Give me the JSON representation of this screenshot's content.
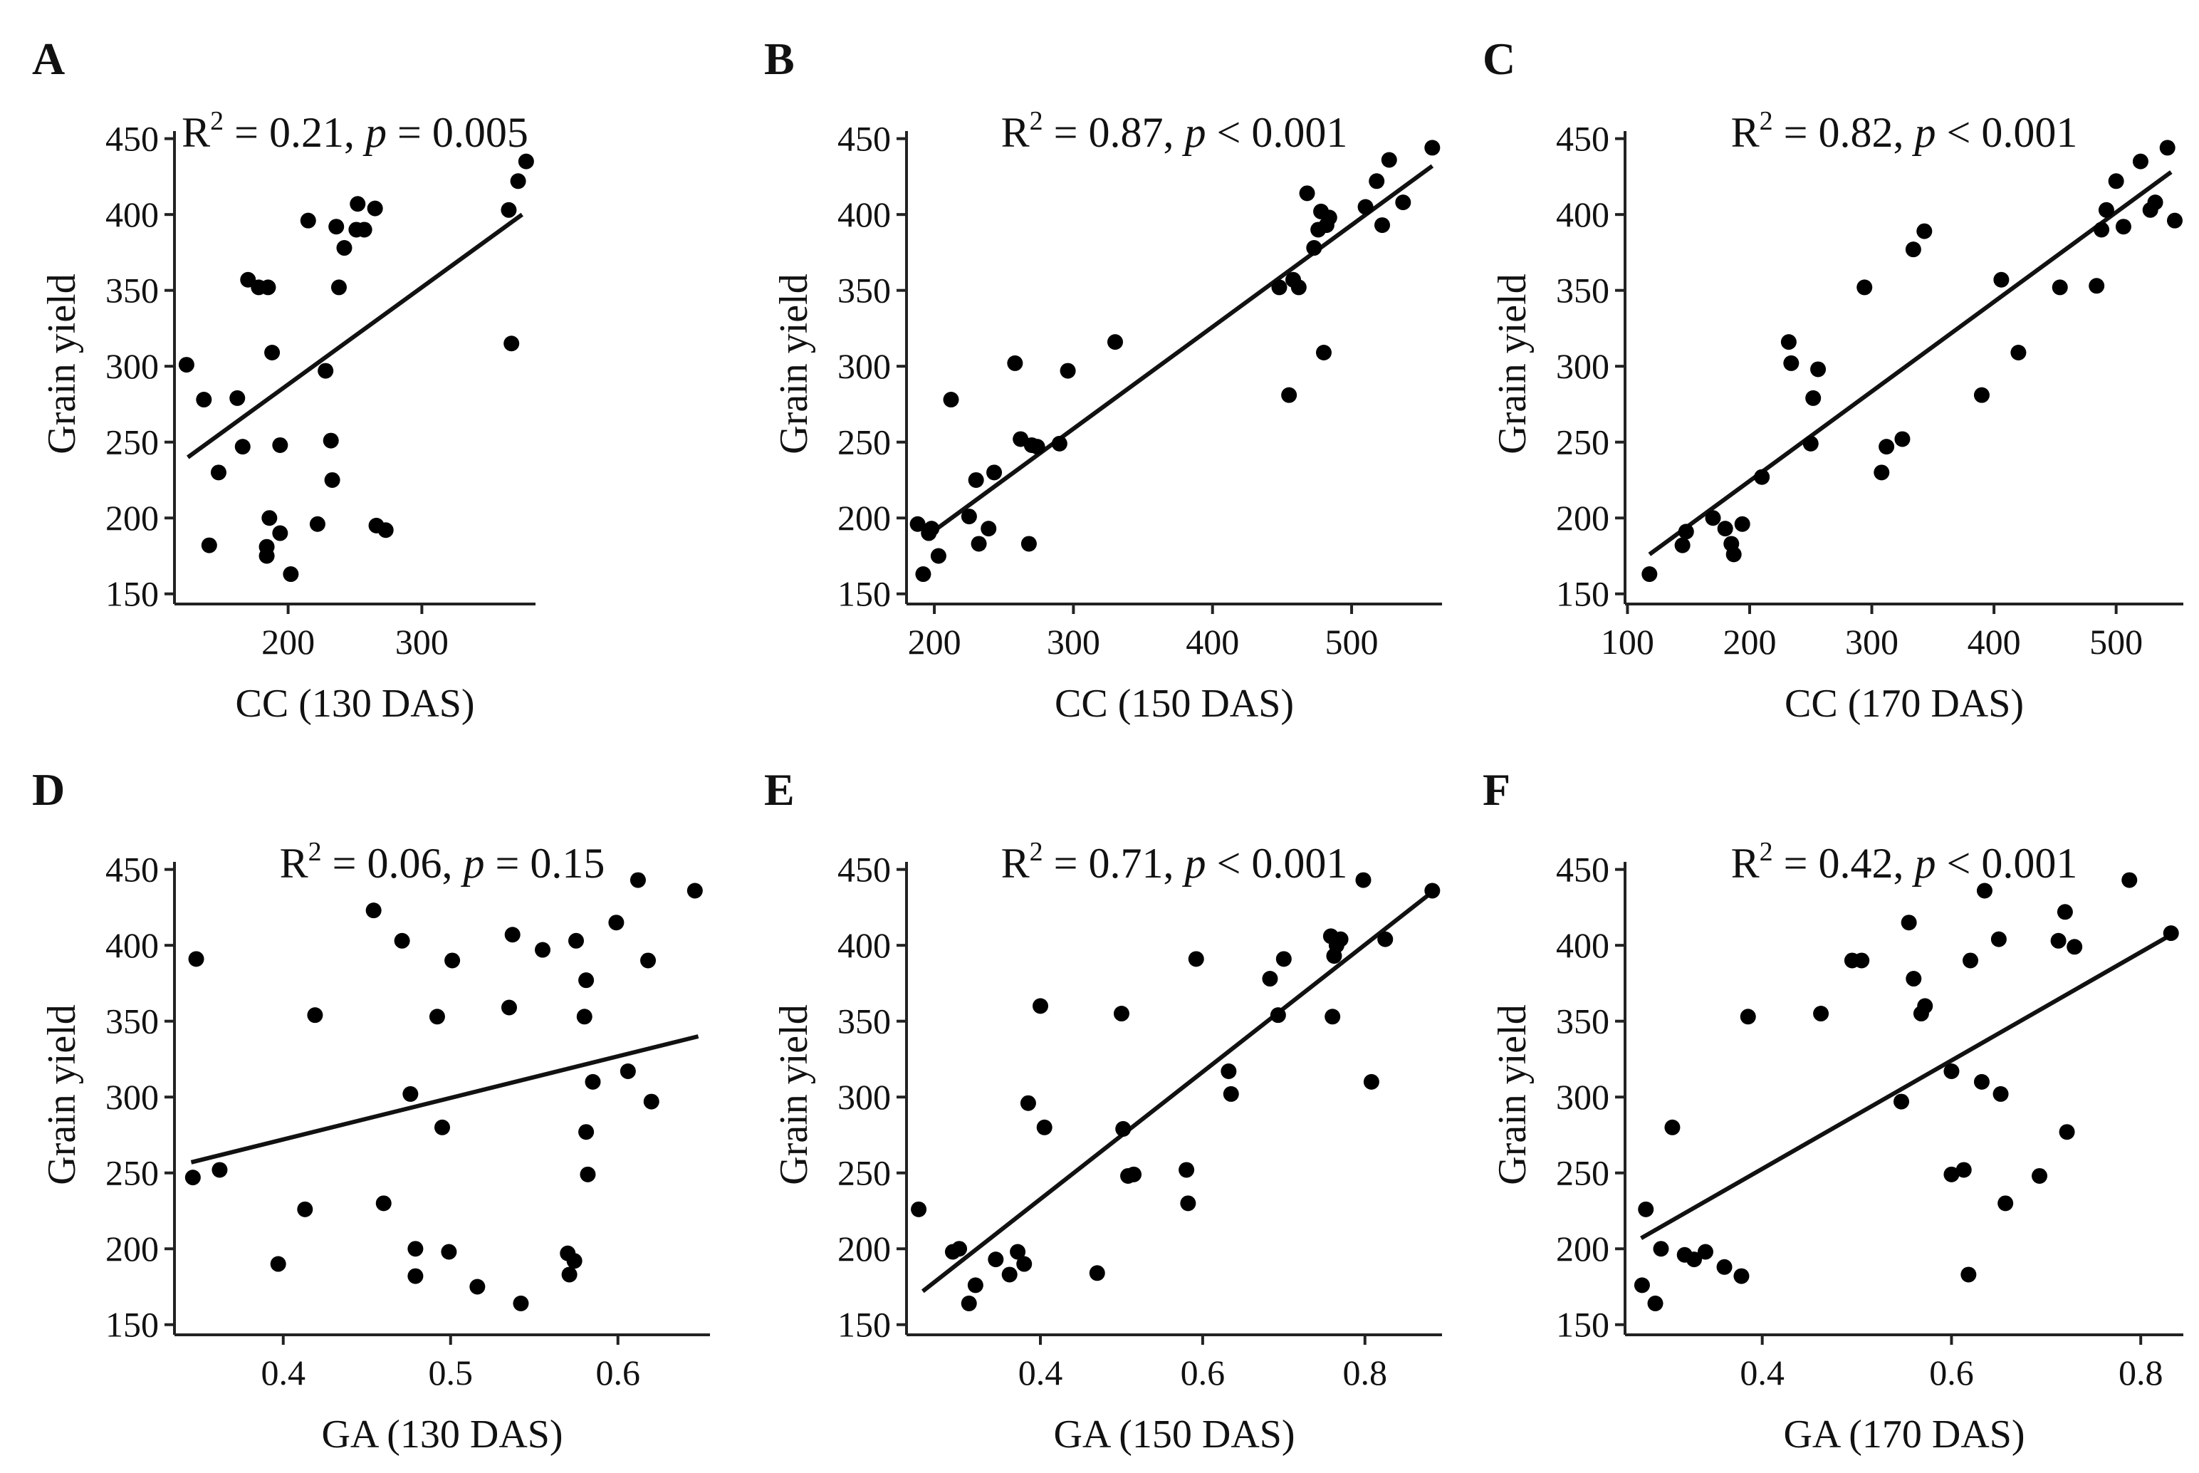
{
  "colors": {
    "points": "#000000",
    "line": "#111111",
    "axis": "#222222"
  },
  "chart_data": [
    {
      "panel": "A",
      "type": "scatter",
      "stat": {
        "r2_label": "R",
        "r2_value": "= 0.21, ",
        "p_label": "p",
        "p_value": " = 0.005"
      },
      "xlabel": "CC (130 DAS)",
      "ylabel": "Grain yield",
      "xlim": [
        115,
        385
      ],
      "ylim": [
        148,
        455
      ],
      "xticks": [
        200,
        300
      ],
      "yticks": [
        150,
        200,
        250,
        300,
        350,
        400,
        450
      ],
      "fit": {
        "x": [
          125,
          375
        ],
        "y": [
          240,
          400
        ]
      },
      "points": [
        [
          124,
          301
        ],
        [
          137,
          278
        ],
        [
          141,
          182
        ],
        [
          148,
          230
        ],
        [
          162,
          279
        ],
        [
          166,
          247
        ],
        [
          170,
          357
        ],
        [
          178,
          352
        ],
        [
          184,
          175
        ],
        [
          184,
          181
        ],
        [
          185,
          352
        ],
        [
          186,
          200
        ],
        [
          188,
          309
        ],
        [
          194,
          248
        ],
        [
          194,
          190
        ],
        [
          202,
          163
        ],
        [
          215,
          396
        ],
        [
          222,
          196
        ],
        [
          228,
          297
        ],
        [
          232,
          251
        ],
        [
          233,
          225
        ],
        [
          236,
          392
        ],
        [
          238,
          352
        ],
        [
          242,
          378
        ],
        [
          251,
          390
        ],
        [
          252,
          407
        ],
        [
          257,
          390
        ],
        [
          265,
          404
        ],
        [
          266,
          195
        ],
        [
          273,
          192
        ],
        [
          365,
          403
        ],
        [
          367,
          315
        ],
        [
          372,
          422
        ],
        [
          378,
          435
        ]
      ]
    },
    {
      "panel": "B",
      "type": "scatter",
      "stat": {
        "r2_label": "R",
        "r2_value": "= 0.87, ",
        "p_label": "p",
        "p_value": " < 0.001"
      },
      "xlabel": "CC (150 DAS)",
      "ylabel": "Grain yield",
      "xlim": [
        180,
        565
      ],
      "ylim": [
        148,
        455
      ],
      "xticks": [
        200,
        300,
        400,
        500
      ],
      "yticks": [
        150,
        200,
        250,
        300,
        350,
        400,
        450
      ],
      "fit": {
        "x": [
          193,
          558
        ],
        "y": [
          187,
          432
        ]
      },
      "points": [
        [
          188,
          196
        ],
        [
          192,
          163
        ],
        [
          196,
          190
        ],
        [
          198,
          193
        ],
        [
          203,
          175
        ],
        [
          212,
          278
        ],
        [
          225,
          201
        ],
        [
          230,
          225
        ],
        [
          232,
          183
        ],
        [
          239,
          193
        ],
        [
          243,
          230
        ],
        [
          258,
          302
        ],
        [
          262,
          252
        ],
        [
          268,
          183
        ],
        [
          270,
          248
        ],
        [
          274,
          247
        ],
        [
          290,
          249
        ],
        [
          296,
          297
        ],
        [
          330,
          316
        ],
        [
          448,
          352
        ],
        [
          455,
          281
        ],
        [
          458,
          357
        ],
        [
          462,
          352
        ],
        [
          468,
          414
        ],
        [
          473,
          378
        ],
        [
          476,
          390
        ],
        [
          478,
          402
        ],
        [
          480,
          309
        ],
        [
          482,
          393
        ],
        [
          484,
          398
        ],
        [
          510,
          405
        ],
        [
          518,
          422
        ],
        [
          522,
          393
        ],
        [
          527,
          436
        ],
        [
          537,
          408
        ],
        [
          558,
          444
        ]
      ]
    },
    {
      "panel": "C",
      "type": "scatter",
      "stat": {
        "r2_label": "R",
        "r2_value": "= 0.82, ",
        "p_label": "p",
        "p_value": " < 0.001"
      },
      "xlabel": "CC (170 DAS)",
      "ylabel": "Grain yield",
      "xlim": [
        98,
        555
      ],
      "ylim": [
        148,
        455
      ],
      "xticks": [
        100,
        200,
        300,
        400,
        500
      ],
      "yticks": [
        150,
        200,
        250,
        300,
        350,
        400,
        450
      ],
      "fit": {
        "x": [
          118,
          545
        ],
        "y": [
          176,
          428
        ]
      },
      "points": [
        [
          118,
          163
        ],
        [
          145,
          182
        ],
        [
          148,
          191
        ],
        [
          170,
          200
        ],
        [
          180,
          193
        ],
        [
          185,
          183
        ],
        [
          187,
          176
        ],
        [
          194,
          196
        ],
        [
          210,
          227
        ],
        [
          232,
          316
        ],
        [
          234,
          302
        ],
        [
          250,
          249
        ],
        [
          252,
          279
        ],
        [
          256,
          298
        ],
        [
          294,
          352
        ],
        [
          308,
          230
        ],
        [
          312,
          247
        ],
        [
          325,
          252
        ],
        [
          334,
          377
        ],
        [
          343,
          389
        ],
        [
          390,
          281
        ],
        [
          406,
          357
        ],
        [
          420,
          309
        ],
        [
          454,
          352
        ],
        [
          484,
          353
        ],
        [
          488,
          390
        ],
        [
          492,
          403
        ],
        [
          500,
          422
        ],
        [
          506,
          392
        ],
        [
          520,
          435
        ],
        [
          528,
          403
        ],
        [
          532,
          408
        ],
        [
          542,
          444
        ],
        [
          548,
          396
        ]
      ]
    },
    {
      "panel": "D",
      "type": "scatter",
      "stat": {
        "r2_label": "R",
        "r2_value": "= 0.06, ",
        "p_label": "p",
        "p_value": " = 0.15"
      },
      "xlabel": "GA (130 DAS)",
      "ylabel": "Grain yield",
      "xlim": [
        0.335,
        0.655
      ],
      "ylim": [
        148,
        455
      ],
      "xticks": [
        0.4,
        0.5,
        0.6
      ],
      "yticks": [
        150,
        200,
        250,
        300,
        350,
        400,
        450
      ],
      "fit": {
        "x": [
          0.345,
          0.648
        ],
        "y": [
          257,
          340
        ]
      },
      "points": [
        [
          0.346,
          247
        ],
        [
          0.348,
          391
        ],
        [
          0.362,
          252
        ],
        [
          0.397,
          190
        ],
        [
          0.413,
          226
        ],
        [
          0.419,
          354
        ],
        [
          0.454,
          423
        ],
        [
          0.46,
          230
        ],
        [
          0.471,
          403
        ],
        [
          0.476,
          302
        ],
        [
          0.479,
          200
        ],
        [
          0.479,
          182
        ],
        [
          0.492,
          353
        ],
        [
          0.495,
          280
        ],
        [
          0.499,
          198
        ],
        [
          0.501,
          390
        ],
        [
          0.516,
          175
        ],
        [
          0.535,
          359
        ],
        [
          0.537,
          407
        ],
        [
          0.542,
          164
        ],
        [
          0.555,
          397
        ],
        [
          0.57,
          197
        ],
        [
          0.571,
          183
        ],
        [
          0.574,
          192
        ],
        [
          0.575,
          403
        ],
        [
          0.58,
          353
        ],
        [
          0.581,
          377
        ],
        [
          0.581,
          277
        ],
        [
          0.582,
          249
        ],
        [
          0.585,
          310
        ],
        [
          0.599,
          415
        ],
        [
          0.606,
          317
        ],
        [
          0.612,
          443
        ],
        [
          0.618,
          390
        ],
        [
          0.62,
          297
        ],
        [
          0.646,
          436
        ]
      ]
    },
    {
      "panel": "E",
      "type": "scatter",
      "stat": {
        "r2_label": "R",
        "r2_value": "= 0.71, ",
        "p_label": "p",
        "p_value": " < 0.001"
      },
      "xlabel": "GA (150 DAS)",
      "ylabel": "Grain yield",
      "xlim": [
        0.235,
        0.895
      ],
      "ylim": [
        148,
        455
      ],
      "xticks": [
        0.4,
        0.6,
        0.8
      ],
      "yticks": [
        150,
        200,
        250,
        300,
        350,
        400,
        450
      ],
      "fit": {
        "x": [
          0.255,
          0.885
        ],
        "y": [
          172,
          436
        ]
      },
      "points": [
        [
          0.25,
          226
        ],
        [
          0.292,
          198
        ],
        [
          0.3,
          200
        ],
        [
          0.312,
          164
        ],
        [
          0.32,
          176
        ],
        [
          0.345,
          193
        ],
        [
          0.362,
          183
        ],
        [
          0.372,
          198
        ],
        [
          0.38,
          190
        ],
        [
          0.385,
          296
        ],
        [
          0.4,
          360
        ],
        [
          0.405,
          280
        ],
        [
          0.47,
          184
        ],
        [
          0.5,
          355
        ],
        [
          0.502,
          279
        ],
        [
          0.508,
          248
        ],
        [
          0.515,
          249
        ],
        [
          0.58,
          252
        ],
        [
          0.582,
          230
        ],
        [
          0.592,
          391
        ],
        [
          0.632,
          317
        ],
        [
          0.635,
          302
        ],
        [
          0.683,
          378
        ],
        [
          0.693,
          354
        ],
        [
          0.7,
          391
        ],
        [
          0.758,
          406
        ],
        [
          0.76,
          353
        ],
        [
          0.762,
          393
        ],
        [
          0.765,
          400
        ],
        [
          0.77,
          404
        ],
        [
          0.798,
          443
        ],
        [
          0.808,
          310
        ],
        [
          0.825,
          404
        ],
        [
          0.883,
          436
        ]
      ]
    },
    {
      "panel": "F",
      "type": "scatter",
      "stat": {
        "r2_label": "R",
        "r2_value": "= 0.42, ",
        "p_label": "p",
        "p_value": " < 0.001"
      },
      "xlabel": "GA (170 DAS)",
      "ylabel": "Grain yield",
      "xlim": [
        0.255,
        0.845
      ],
      "ylim": [
        148,
        455
      ],
      "xticks": [
        0.4,
        0.6,
        0.8
      ],
      "yticks": [
        150,
        200,
        250,
        300,
        350,
        400,
        450
      ],
      "fit": {
        "x": [
          0.272,
          0.835
        ],
        "y": [
          207,
          408
        ]
      },
      "points": [
        [
          0.273,
          176
        ],
        [
          0.277,
          226
        ],
        [
          0.287,
          164
        ],
        [
          0.293,
          200
        ],
        [
          0.305,
          280
        ],
        [
          0.318,
          196
        ],
        [
          0.328,
          193
        ],
        [
          0.34,
          198
        ],
        [
          0.36,
          188
        ],
        [
          0.378,
          182
        ],
        [
          0.385,
          353
        ],
        [
          0.462,
          355
        ],
        [
          0.495,
          390
        ],
        [
          0.505,
          390
        ],
        [
          0.547,
          297
        ],
        [
          0.555,
          415
        ],
        [
          0.56,
          378
        ],
        [
          0.568,
          355
        ],
        [
          0.572,
          360
        ],
        [
          0.6,
          317
        ],
        [
          0.6,
          249
        ],
        [
          0.613,
          252
        ],
        [
          0.618,
          183
        ],
        [
          0.62,
          390
        ],
        [
          0.632,
          310
        ],
        [
          0.635,
          436
        ],
        [
          0.65,
          404
        ],
        [
          0.652,
          302
        ],
        [
          0.657,
          230
        ],
        [
          0.693,
          248
        ],
        [
          0.713,
          403
        ],
        [
          0.72,
          422
        ],
        [
          0.722,
          277
        ],
        [
          0.73,
          399
        ],
        [
          0.788,
          443
        ],
        [
          0.832,
          408
        ]
      ]
    }
  ]
}
